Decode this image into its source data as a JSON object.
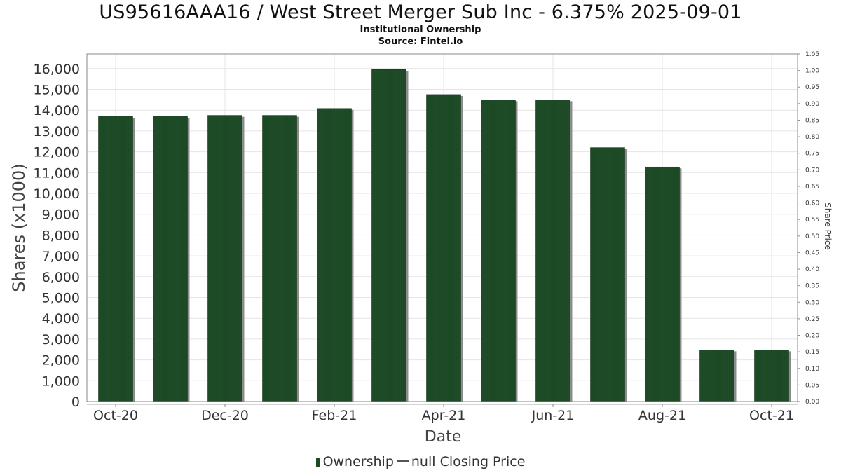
{
  "title": "US95616AAA16 / West Street Merger Sub Inc - 6.375% 2025-09-01",
  "subtitle": "Institutional Ownership",
  "source": "Source: Fintel.io",
  "legend": {
    "ownership": "Ownership",
    "price": "null Closing Price"
  },
  "colors": {
    "bar": "#1c4a25",
    "bar_shadow": "#8c8c8c",
    "grid": "#e4e4e4",
    "axis": "#888888"
  },
  "chart_data": {
    "type": "bar",
    "xlabel": "Date",
    "ylabel": "Shares (x1000)",
    "y2label": "Share Price",
    "ylim": [
      0,
      16700
    ],
    "y2lim": [
      0,
      1.05
    ],
    "yticks": [
      "0",
      "1,000",
      "2,000",
      "3,000",
      "4,000",
      "5,000",
      "6,000",
      "7,000",
      "8,000",
      "9,000",
      "10,000",
      "11,000",
      "12,000",
      "13,000",
      "14,000",
      "15,000",
      "16,000"
    ],
    "y2ticks": [
      "0.00",
      "0.05",
      "0.10",
      "0.15",
      "0.20",
      "0.25",
      "0.30",
      "0.35",
      "0.40",
      "0.45",
      "0.50",
      "0.55",
      "0.60",
      "0.65",
      "0.70",
      "0.75",
      "0.80",
      "0.85",
      "0.90",
      "0.95",
      "1.00",
      "1.05"
    ],
    "xticks": [
      "Oct-20",
      "Dec-20",
      "Feb-21",
      "Apr-21",
      "Jun-21",
      "Aug-21",
      "Oct-21"
    ],
    "grid": true,
    "legend_position": "bottom",
    "categories": [
      "2020-10",
      "2020-11",
      "2020-12",
      "2021-01",
      "2021-02",
      "2021-03",
      "2021-04",
      "2021-05",
      "2021-06",
      "2021-07",
      "2021-08",
      "2021-09",
      "2021-10"
    ],
    "series": [
      {
        "name": "Ownership",
        "values": [
          13700,
          13700,
          13750,
          13750,
          14080,
          15950,
          14750,
          14500,
          14500,
          12200,
          11270,
          2480,
          2480
        ]
      }
    ]
  }
}
